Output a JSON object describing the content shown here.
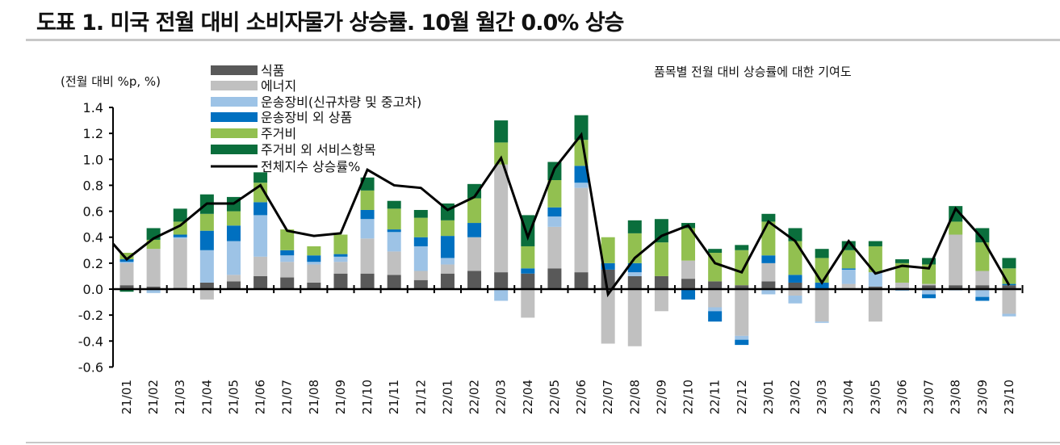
{
  "title": "도표 1. 미국 전월 대비 소비자물가 상승률. 10월 월간 0.0% 상승",
  "chart_data": {
    "type": "bar",
    "stacked": true,
    "ylabel": "(전월 대비 %p, %)",
    "annotation": "품목별 전월 대비 상승률에 대한 기여도",
    "ylim": [
      -0.6,
      1.4
    ],
    "yticks": [
      -0.6,
      -0.4,
      -0.2,
      0.0,
      0.2,
      0.4,
      0.6,
      0.8,
      1.0,
      1.2,
      1.4
    ],
    "ytick_labels": [
      "-0.6",
      "-0.4",
      "-0.2",
      "0.0",
      "0.2",
      "0.4",
      "0.6",
      "0.8",
      "1.0",
      "1.2",
      "1.4"
    ],
    "grid": false,
    "legend_placement": "top-left",
    "categories": [
      "21/01",
      "21/02",
      "21/03",
      "21/04",
      "21/05",
      "21/06",
      "21/07",
      "21/08",
      "21/09",
      "21/10",
      "21/11",
      "21/12",
      "22/01",
      "22/02",
      "22/03",
      "22/04",
      "22/05",
      "22/06",
      "22/07",
      "22/08",
      "22/09",
      "22/10",
      "22/11",
      "22/12",
      "23/01",
      "23/02",
      "23/03",
      "23/04",
      "23/05",
      "23/06",
      "23/07",
      "23/08",
      "23/09",
      "23/10"
    ],
    "series": [
      {
        "name": "식품",
        "color": "#595959",
        "values": [
          0.03,
          0.02,
          0.01,
          0.05,
          0.06,
          0.1,
          0.09,
          0.05,
          0.12,
          0.12,
          0.11,
          0.07,
          0.12,
          0.14,
          0.13,
          0.12,
          0.16,
          0.13,
          0.15,
          0.1,
          0.1,
          0.08,
          0.06,
          0.03,
          0.06,
          0.05,
          0.0,
          0.0,
          0.02,
          0.01,
          0.03,
          0.03,
          0.03,
          0.03
        ]
      },
      {
        "name": "에너지",
        "color": "#c0c0c0",
        "values": [
          0.17,
          0.29,
          0.38,
          -0.08,
          0.05,
          0.15,
          0.12,
          0.14,
          0.09,
          0.27,
          0.18,
          0.07,
          0.07,
          0.26,
          0.83,
          -0.22,
          0.32,
          0.65,
          -0.42,
          -0.44,
          -0.17,
          0.14,
          -0.14,
          -0.36,
          0.14,
          -0.05,
          -0.25,
          0.04,
          -0.25,
          0.04,
          0.01,
          0.39,
          0.11,
          -0.19
        ]
      },
      {
        "name": "운송장비(신규차량 및 중고차)",
        "color": "#9dc3e6",
        "values": [
          0.01,
          -0.03,
          0.01,
          0.25,
          0.26,
          0.32,
          0.05,
          0.02,
          0.04,
          0.15,
          0.15,
          0.19,
          0.05,
          0.0,
          -0.09,
          0.0,
          0.08,
          0.04,
          0.0,
          0.03,
          0.0,
          0.0,
          -0.03,
          -0.03,
          -0.04,
          -0.06,
          -0.01,
          0.11,
          0.11,
          0.0,
          -0.04,
          -0.01,
          -0.06,
          -0.02
        ]
      },
      {
        "name": "운송장비 외 상품",
        "color": "#0070c0",
        "values": [
          0.02,
          0.0,
          0.02,
          0.15,
          0.12,
          0.1,
          0.04,
          0.05,
          0.02,
          0.07,
          0.02,
          0.07,
          0.17,
          0.11,
          0.0,
          0.04,
          0.07,
          0.13,
          0.05,
          0.07,
          0.0,
          -0.08,
          -0.08,
          -0.04,
          0.06,
          0.06,
          0.05,
          0.01,
          0.0,
          -0.01,
          -0.03,
          0.0,
          -0.03,
          0.01
        ]
      },
      {
        "name": "주거비",
        "color": "#92c050",
        "values": [
          0.05,
          0.07,
          0.1,
          0.13,
          0.11,
          0.15,
          0.16,
          0.07,
          0.15,
          0.15,
          0.16,
          0.15,
          0.12,
          0.19,
          0.17,
          0.17,
          0.21,
          0.2,
          0.2,
          0.23,
          0.26,
          0.25,
          0.22,
          0.27,
          0.26,
          0.26,
          0.19,
          0.14,
          0.2,
          0.15,
          0.15,
          0.1,
          0.22,
          0.12
        ]
      },
      {
        "name": "주거비 외 서비스항목",
        "color": "#0a6e3c",
        "values": [
          -0.02,
          0.09,
          0.1,
          0.15,
          0.11,
          0.08,
          0.0,
          0.0,
          0.0,
          0.1,
          0.06,
          0.06,
          0.13,
          0.11,
          0.17,
          0.24,
          0.14,
          0.19,
          0.0,
          0.1,
          0.18,
          0.04,
          0.03,
          0.04,
          0.06,
          0.1,
          0.07,
          0.07,
          0.04,
          0.03,
          0.05,
          0.12,
          0.11,
          0.08
        ]
      }
    ],
    "line": {
      "name": "전체지수 상승률%",
      "color": "#000000",
      "values": [
        0.23,
        0.39,
        0.49,
        0.66,
        0.66,
        0.8,
        0.45,
        0.41,
        0.43,
        0.92,
        0.8,
        0.78,
        0.61,
        0.71,
        1.01,
        0.4,
        0.93,
        1.19,
        -0.04,
        0.24,
        0.41,
        0.49,
        0.2,
        0.13,
        0.52,
        0.37,
        0.05,
        0.37,
        0.12,
        0.18,
        0.16,
        0.62,
        0.39,
        0.03
      ]
    }
  }
}
